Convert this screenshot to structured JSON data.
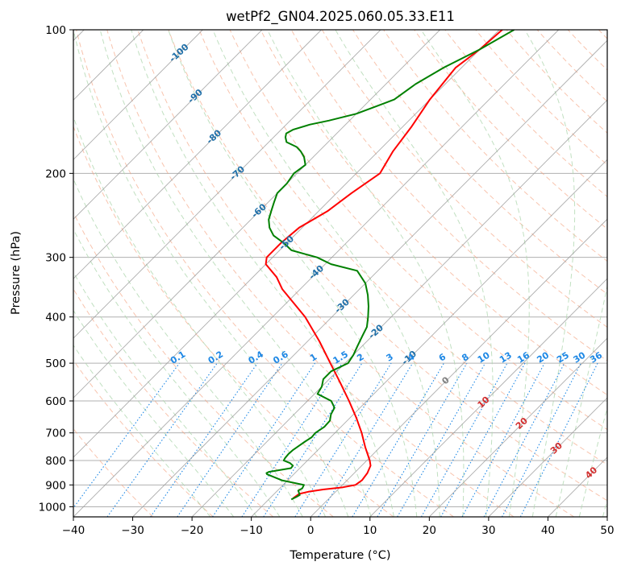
{
  "chart_data": {
    "type": "line",
    "title": "wetPf2_GN04.2025.060.05.33.E11",
    "xlabel": "Temperature (°C)",
    "ylabel": "Pressure (hPa)",
    "xlim": [
      -40,
      50
    ],
    "ylim": [
      1050,
      100
    ],
    "y_scale": "log",
    "x_ticks": [
      -40,
      -30,
      -20,
      -10,
      0,
      10,
      20,
      30,
      40,
      50
    ],
    "y_ticks": [
      100,
      200,
      300,
      400,
      500,
      600,
      700,
      800,
      900,
      1000
    ],
    "grid": true,
    "skew_lines": "isotherms",
    "colors": {
      "temperature": "#ff0000",
      "dewpoint": "#008000",
      "isotherm": "#999999",
      "dry_adiabat": "#f4a582",
      "moist_adiabat": "#b2d8b2",
      "mixing_ratio": "#1e88e5",
      "isotherm_label": "#1f6fa8",
      "dry_adiabat_label": "#d32f2f",
      "hgz_label": "#808080"
    },
    "series": [
      {
        "name": "Temperature",
        "pressure": [
          960,
          940,
          930,
          920,
          910,
          900,
          880,
          850,
          820,
          800,
          750,
          700,
          650,
          600,
          550,
          500,
          450,
          400,
          350,
          330,
          310,
          300,
          280,
          260,
          240,
          220,
          200,
          180,
          160,
          140,
          120,
          110,
          100
        ],
        "values": [
          -6.1,
          -5.8,
          -4.6,
          -2.5,
          0.5,
          2.2,
          2.5,
          2.2,
          1.5,
          0.5,
          -2.5,
          -5.5,
          -9,
          -13,
          -17.5,
          -22.5,
          -28,
          -34.5,
          -43,
          -46,
          -50,
          -51,
          -51,
          -50.5,
          -48.5,
          -47.5,
          -46,
          -47.5,
          -48.5,
          -50,
          -51,
          -50,
          -49.5
        ]
      },
      {
        "name": "Dewpoint",
        "pressure": [
          965,
          955,
          945,
          935,
          925,
          915,
          900,
          880,
          855,
          850,
          845,
          830,
          820,
          810,
          800,
          790,
          775,
          760,
          745,
          730,
          715,
          700,
          680,
          660,
          640,
          620,
          600,
          580,
          560,
          540,
          520,
          500,
          480,
          460,
          440,
          420,
          400,
          380,
          360,
          340,
          320,
          310,
          300,
          290,
          280,
          270,
          260,
          250,
          240,
          230,
          220,
          210,
          200,
          192,
          185,
          180,
          176,
          172,
          168,
          165,
          162,
          158,
          155,
          150,
          145,
          140,
          130,
          120,
          110,
          100
        ],
        "values": [
          -6.2,
          -5.8,
          -5.5,
          -6,
          -6.5,
          -6.2,
          -6.5,
          -11,
          -14.5,
          -14.8,
          -14.6,
          -11.5,
          -11.6,
          -12.5,
          -14,
          -14.2,
          -14.3,
          -14.2,
          -13.9,
          -13.6,
          -13.2,
          -13.3,
          -12.8,
          -12.9,
          -13.8,
          -14.3,
          -16,
          -19.5,
          -20,
          -21,
          -21,
          -19.5,
          -20,
          -20.8,
          -21.6,
          -22.4,
          -23.9,
          -25.6,
          -27.6,
          -30,
          -33.5,
          -39,
          -42.5,
          -48,
          -50.5,
          -53.5,
          -55.5,
          -57,
          -58,
          -59,
          -60,
          -60,
          -60.5,
          -60,
          -61.5,
          -63,
          -64.5,
          -67,
          -68,
          -68.5,
          -68,
          -66,
          -63.5,
          -60,
          -58,
          -56,
          -55,
          -53,
          -50,
          -47.5
        ]
      }
    ],
    "isotherm_labels": [
      "-100",
      "-90",
      "-80",
      "-70",
      "-60",
      "-50",
      "-40",
      "-30",
      "-20",
      "-10",
      "0",
      "10",
      "20",
      "30",
      "40"
    ],
    "mixing_ratio_labels": [
      "0.1",
      "0.2",
      "0.4",
      "0.6",
      "1",
      "1.5",
      "2",
      "3",
      "4",
      "6",
      "8",
      "10",
      "13",
      "16",
      "20",
      "25",
      "30",
      "36"
    ]
  }
}
